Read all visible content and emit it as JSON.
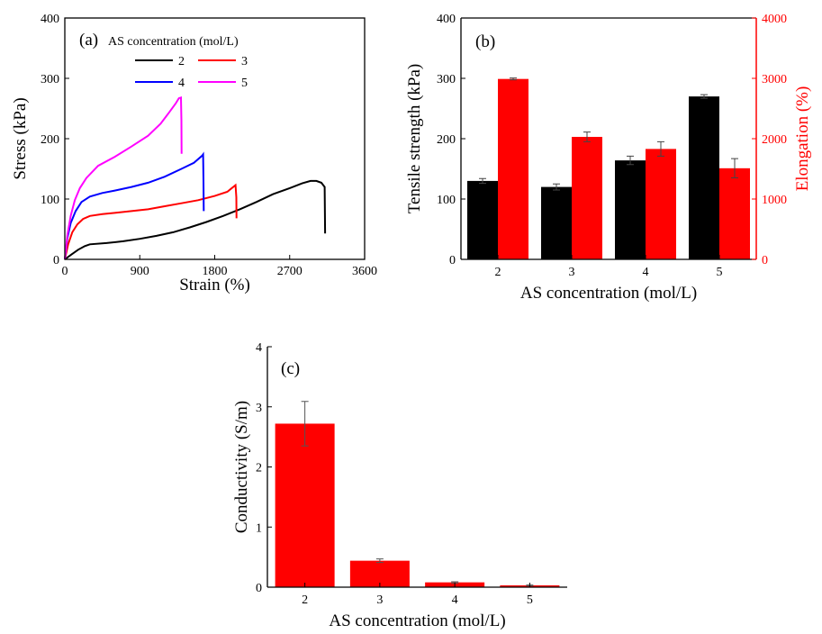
{
  "chart_data": [
    {
      "type": "line",
      "panel_label": "(a)",
      "legend_title": "AS concentration (mol/L)",
      "legend_placement": "top-left",
      "xlabel": "Strain (%)",
      "ylabel": "Stress (kPa)",
      "xlim": [
        0,
        3600
      ],
      "ylim": [
        0,
        400
      ],
      "xticks": [
        0,
        900,
        1800,
        2700,
        3600
      ],
      "yticks": [
        0,
        100,
        200,
        300,
        400
      ],
      "grid": false,
      "series": [
        {
          "name": "2",
          "color": "#000000",
          "points": [
            [
              0,
              0
            ],
            [
              80,
              8
            ],
            [
              160,
              16
            ],
            [
              240,
              22
            ],
            [
              300,
              25
            ],
            [
              500,
              27
            ],
            [
              700,
              30
            ],
            [
              900,
              34
            ],
            [
              1100,
              39
            ],
            [
              1300,
              45
            ],
            [
              1500,
              53
            ],
            [
              1700,
              62
            ],
            [
              1900,
              72
            ],
            [
              2100,
              83
            ],
            [
              2300,
              95
            ],
            [
              2500,
              108
            ],
            [
              2700,
              118
            ],
            [
              2850,
              126
            ],
            [
              2950,
              130
            ],
            [
              3020,
              130
            ],
            [
              3080,
              127
            ],
            [
              3120,
              120
            ],
            [
              3125,
              43
            ]
          ]
        },
        {
          "name": "3",
          "color": "#ff0000",
          "points": [
            [
              0,
              0
            ],
            [
              40,
              25
            ],
            [
              90,
              45
            ],
            [
              150,
              58
            ],
            [
              220,
              67
            ],
            [
              300,
              72
            ],
            [
              450,
              75
            ],
            [
              600,
              77
            ],
            [
              800,
              80
            ],
            [
              1000,
              83
            ],
            [
              1200,
              88
            ],
            [
              1400,
              93
            ],
            [
              1600,
              98
            ],
            [
              1800,
              105
            ],
            [
              1950,
              112
            ],
            [
              2050,
              123
            ],
            [
              2060,
              103
            ],
            [
              2062,
              68
            ]
          ]
        },
        {
          "name": "4",
          "color": "#0000ff",
          "points": [
            [
              0,
              0
            ],
            [
              30,
              35
            ],
            [
              70,
              60
            ],
            [
              130,
              80
            ],
            [
              200,
              95
            ],
            [
              300,
              104
            ],
            [
              450,
              110
            ],
            [
              600,
              114
            ],
            [
              800,
              120
            ],
            [
              1000,
              127
            ],
            [
              1200,
              137
            ],
            [
              1400,
              150
            ],
            [
              1550,
              160
            ],
            [
              1650,
              172
            ],
            [
              1660,
              174
            ],
            [
              1665,
              130
            ],
            [
              1668,
              80
            ]
          ]
        },
        {
          "name": "5",
          "color": "#ff00ff",
          "points": [
            [
              0,
              0
            ],
            [
              30,
              40
            ],
            [
              70,
              72
            ],
            [
              120,
              98
            ],
            [
              180,
              118
            ],
            [
              260,
              135
            ],
            [
              400,
              155
            ],
            [
              600,
              170
            ],
            [
              800,
              187
            ],
            [
              1000,
              205
            ],
            [
              1150,
              225
            ],
            [
              1250,
              243
            ],
            [
              1330,
              258
            ],
            [
              1370,
              267
            ],
            [
              1395,
              268
            ],
            [
              1400,
              230
            ],
            [
              1402,
              175
            ]
          ]
        }
      ]
    },
    {
      "type": "bar",
      "panel_label": "(b)",
      "xlabel": "AS concentration (mol/L)",
      "ylabel": "Tensile strength (kPa)",
      "y2label": "Elongation (%)",
      "categories": [
        "2",
        "3",
        "4",
        "5"
      ],
      "ylim": [
        0,
        400
      ],
      "y2lim": [
        0,
        4000
      ],
      "yticks": [
        0,
        100,
        200,
        300,
        400
      ],
      "y2ticks": [
        0,
        1000,
        2000,
        3000,
        4000
      ],
      "grid": false,
      "series": [
        {
          "axis": "left",
          "color": "#000000",
          "values": [
            130,
            120,
            164,
            270
          ],
          "errors": [
            4,
            5,
            7,
            3
          ]
        },
        {
          "axis": "right",
          "color": "#ff0000",
          "values": [
            2990,
            2030,
            1830,
            1510
          ],
          "errors": [
            15,
            80,
            120,
            160
          ]
        }
      ]
    },
    {
      "type": "bar",
      "panel_label": "(c)",
      "xlabel": "AS concentration (mol/L)",
      "ylabel": "Conductivity (S/m)",
      "categories": [
        "2",
        "3",
        "4",
        "5"
      ],
      "ylim": [
        0,
        4
      ],
      "yticks": [
        0,
        1,
        2,
        3,
        4
      ],
      "grid": false,
      "series": [
        {
          "color": "#ff0000",
          "values": [
            2.72,
            0.44,
            0.08,
            0.03
          ],
          "errors": [
            0.37,
            0.03,
            0.01,
            0.005
          ]
        }
      ]
    }
  ]
}
